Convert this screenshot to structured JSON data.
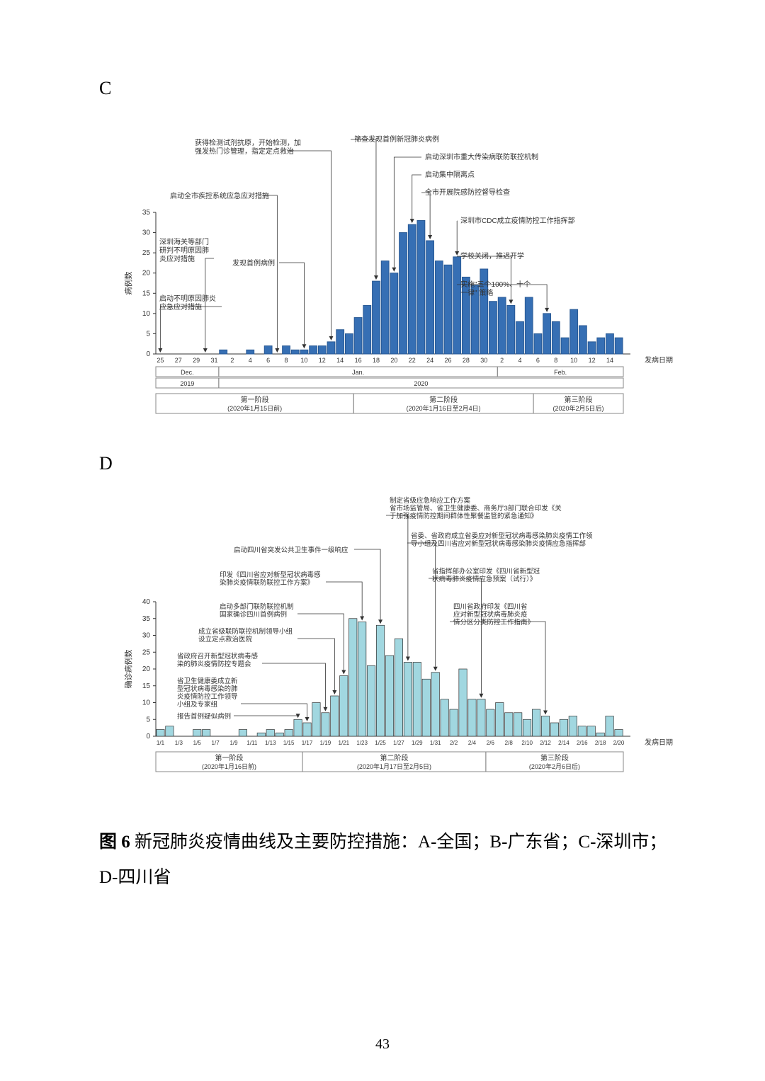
{
  "panelC": {
    "letter": "C",
    "chart": {
      "type": "bar",
      "bar_color": "#366fb4",
      "bar_stroke": "#2a5a94",
      "axis_color": "#333333",
      "text_color": "#333333",
      "bg_color": "#ffffff",
      "ylim": [
        0,
        35
      ],
      "ytick_step": 5,
      "yticks": [
        0,
        5,
        10,
        15,
        20,
        25,
        30,
        35
      ],
      "ylabel": "病例数",
      "xlabel_right": "发病日期",
      "x_positions": [
        25,
        26,
        27,
        28,
        29,
        30,
        31,
        1,
        2,
        3,
        4,
        5,
        6,
        7,
        8,
        9,
        10,
        11,
        12,
        13,
        14,
        15,
        16,
        17,
        18,
        19,
        20,
        21,
        22,
        23,
        24,
        25,
        26,
        27,
        28,
        29,
        30,
        31,
        1,
        2,
        3,
        4,
        5,
        6,
        7,
        8,
        9,
        10,
        11,
        12,
        13,
        14
      ],
      "x_ticklabels": [
        "25",
        "",
        "27",
        "",
        "29",
        "",
        "31",
        "",
        "2",
        "",
        "4",
        "",
        "6",
        "",
        "8",
        "",
        "10",
        "",
        "12",
        "",
        "14",
        "",
        "16",
        "",
        "18",
        "",
        "20",
        "",
        "22",
        "",
        "24",
        "",
        "26",
        "",
        "28",
        "",
        "30",
        "",
        "2",
        "",
        "4",
        "",
        "6",
        "",
        "8",
        "",
        "10",
        "",
        "12",
        "",
        "14"
      ],
      "values": [
        0,
        0,
        0,
        0,
        0,
        0,
        0,
        1,
        0,
        0,
        1,
        0,
        2,
        0,
        2,
        1,
        1,
        2,
        2,
        3,
        6,
        5,
        9,
        12,
        18,
        23,
        20,
        30,
        32,
        33,
        28,
        23,
        22,
        24,
        19,
        17,
        21,
        13,
        14,
        12,
        8,
        14,
        5,
        10,
        8,
        4,
        11,
        7,
        3,
        4,
        5,
        4
      ],
      "months": [
        {
          "label": "Dec.",
          "range_idx": [
            0,
            6
          ]
        },
        {
          "label": "Jan.",
          "range_idx": [
            7,
            37
          ]
        },
        {
          "label": "Feb.",
          "range_idx": [
            38,
            51
          ]
        }
      ],
      "years": [
        {
          "label": "2019",
          "range_idx": [
            0,
            6
          ]
        },
        {
          "label": "2020",
          "range_idx": [
            7,
            51
          ]
        }
      ],
      "phases": [
        {
          "label": "第一阶段",
          "sub": "(2020年1月15日前)",
          "range_idx": [
            0,
            21
          ]
        },
        {
          "label": "第二阶段",
          "sub": "(2020年1月16日至2月4日)",
          "range_idx": [
            22,
            41
          ]
        },
        {
          "label": "第三阶段",
          "sub": "(2020年2月5日后)",
          "range_idx": [
            42,
            51
          ]
        }
      ],
      "annotations_left": [
        {
          "idx": 0,
          "text": "启动不明原因肺炎\n应急应对措施"
        },
        {
          "idx": 5,
          "text": "深圳海关等部门\n研判不明原因肺\n炎应对措施"
        },
        {
          "idx": 13,
          "text": "启动全市疾控系统应急应对措施"
        },
        {
          "idx": 16,
          "text": "发现首例病例"
        },
        {
          "idx": 19,
          "text": "获得检测试剂抗原，开始检测，加\n强发热门诊管理，指定定点救治"
        }
      ],
      "annotations_right": [
        {
          "idx": 24,
          "text": "筛查发现首例新冠肺炎病例"
        },
        {
          "idx": 26,
          "text": "启动深圳市重大传染病联防联控机制"
        },
        {
          "idx": 28,
          "text": "启动集中隔离点"
        },
        {
          "idx": 30,
          "text": "全市开展院感防控督导检查"
        },
        {
          "idx": 33,
          "text": "深圳市CDC成立疫情防控工作指挥部"
        },
        {
          "idx": 39,
          "text": "学校关闭，推迟开学"
        },
        {
          "idx": 43,
          "text": "实施\"五个100%、十个\n一律\" 策略"
        }
      ]
    }
  },
  "panelD": {
    "letter": "D",
    "chart": {
      "type": "bar",
      "bar_color": "#a1d7e0",
      "bar_stroke": "#333333",
      "axis_color": "#333333",
      "text_color": "#333333",
      "bg_color": "#ffffff",
      "ylim": [
        0,
        40
      ],
      "ytick_step": 5,
      "yticks": [
        0,
        5,
        10,
        15,
        20,
        25,
        30,
        35,
        40
      ],
      "ylabel": "确诊病例数",
      "xlabel_right": "发病日期",
      "x_ticklabels": [
        "1/1",
        "",
        "1/3",
        "",
        "1/5",
        "",
        "1/7",
        "",
        "1/9",
        "",
        "1/11",
        "",
        "1/13",
        "",
        "1/15",
        "",
        "1/17",
        "",
        "1/19",
        "",
        "1/21",
        "",
        "1/23",
        "",
        "1/25",
        "",
        "1/27",
        "",
        "1/29",
        "",
        "1/31",
        "",
        "2/2",
        "",
        "2/4",
        "",
        "2/6",
        "",
        "2/8",
        "",
        "2/10",
        "",
        "2/12",
        "",
        "2/14",
        "",
        "2/16",
        "",
        "2/18",
        "",
        "2/20"
      ],
      "values": [
        2,
        3,
        0,
        0,
        2,
        2,
        0,
        0,
        0,
        2,
        0,
        1,
        2,
        1,
        2,
        5,
        4,
        10,
        7,
        12,
        18,
        35,
        34,
        21,
        33,
        24,
        29,
        22,
        22,
        17,
        19,
        11,
        8,
        20,
        11,
        11,
        8,
        10,
        7,
        7,
        5,
        8,
        6,
        4,
        5,
        6,
        3,
        3,
        1,
        6,
        2
      ],
      "phases": [
        {
          "label": "第一阶段",
          "sub": "(2020年1月16日前)",
          "range_idx": [
            0,
            15
          ]
        },
        {
          "label": "第二阶段",
          "sub": "(2020年1月17日至2月5日)",
          "range_idx": [
            16,
            35
          ]
        },
        {
          "label": "第三阶段",
          "sub": "(2020年2月6日后)",
          "range_idx": [
            36,
            50
          ]
        }
      ],
      "annotations_left": [
        {
          "idx": 15,
          "text": "报告首例疑似病例"
        },
        {
          "idx": 16,
          "text": "省卫生健康委成立新\n型冠状病毒感染的肺\n炎疫情防控工作领导\n小组及专家组"
        },
        {
          "idx": 18,
          "text": "省政府召开新型冠状病毒感\n染的肺炎疫情防控专题会"
        },
        {
          "idx": 19,
          "text": "成立省级联防联控机制领导小组\n设立定点救治医院"
        },
        {
          "idx": 20,
          "text": "启动多部门联防联控机制\n国家确诊四川首例病例"
        },
        {
          "idx": 22,
          "text": "印发《四川省应对新型冠状病毒感\n染肺炎疫情联防联控工作方案》"
        },
        {
          "idx": 24,
          "text": "启动四川省突发公共卫生事件一级响应"
        }
      ],
      "annotations_right": [
        {
          "idx": 27,
          "text": "制定省级应急响应工作方案\n省市场监管局、省卫生健康委、商务厅3部门联合印发《关\n于加强疫情防控期间群体性聚餐监管的紧急通知》"
        },
        {
          "idx": 30,
          "text": "省委、省政府成立省委应对新型冠状病毒感染肺炎疫情工作领\n导小组及四川省应对新型冠状病毒感染肺炎疫情应急指挥部"
        },
        {
          "idx": 35,
          "text": "省指挥部办公室印发《四川省新型冠\n状病毒肺炎疫情应急预案（试行）》"
        },
        {
          "idx": 42,
          "text": "四川省政府印发《四川省\n应对新型冠状病毒肺炎疫\n情分区分类防控工作指南》"
        }
      ]
    }
  },
  "caption": {
    "prefix_bold": "图 6 ",
    "text": "新冠肺炎疫情曲线及主要防控措施：A-全国；B-广东省；C-深圳市；D-四川省"
  },
  "page_number": "43"
}
